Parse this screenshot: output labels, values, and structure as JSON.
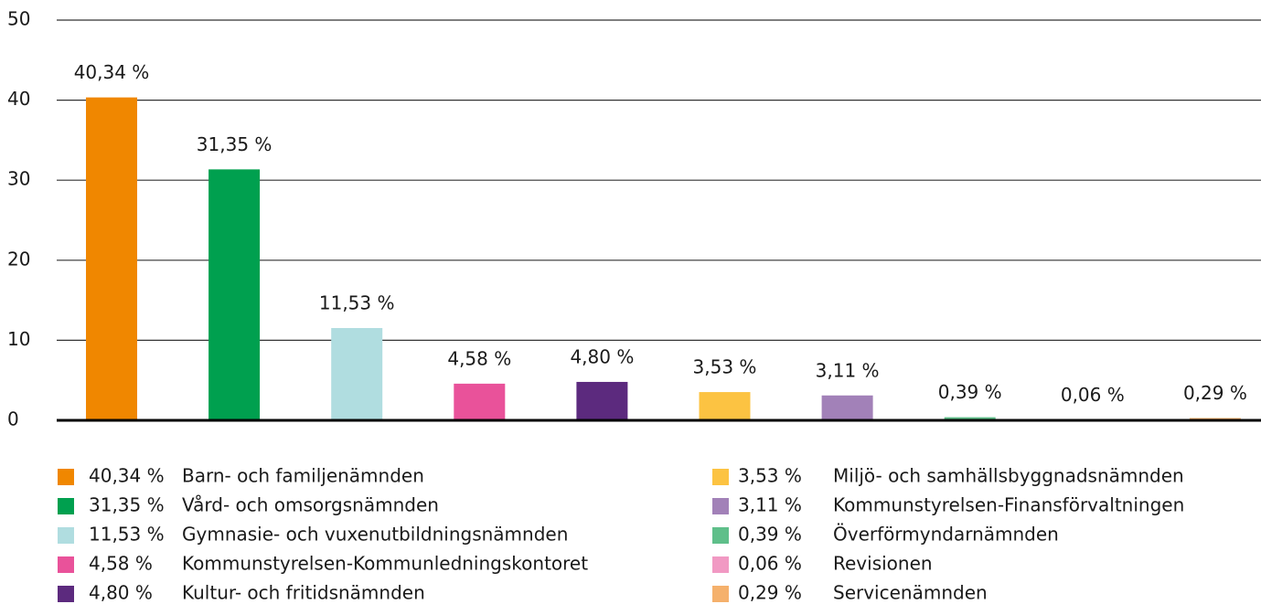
{
  "chart_data": {
    "type": "bar",
    "categories": [
      "Barn- och familjenämnden",
      "Vård- och omsorgsnämnden",
      "Gymnasie- och vuxenutbildningsnämnden",
      "Kommunstyrelsen-Kommunledningskontoret",
      "Kultur- och fritidsnämnden",
      "Miljö- och samhällsbyggnadsnämnden",
      "Kommunstyrelsen-Finansförvaltningen",
      "Överförmyndarnämnden",
      "Revisionen",
      "Servicenämnden"
    ],
    "values": [
      40.34,
      31.35,
      11.53,
      4.58,
      4.8,
      3.53,
      3.11,
      0.39,
      0.06,
      0.29
    ],
    "value_labels": [
      "40,34 %",
      "31,35 %",
      "11,53 %",
      "4,58 %",
      "4,80 %",
      "3,53 %",
      "3,11 %",
      "0,39 %",
      "0,06 %",
      "0,29 %"
    ],
    "colors": [
      "#f08700",
      "#00a04f",
      "#b0dde0",
      "#e9529a",
      "#5c2a7e",
      "#fcc342",
      "#a281b8",
      "#5fbf8a",
      "#f199c3",
      "#f5b16c"
    ],
    "ylim": [
      0,
      50
    ],
    "yticks": [
      0,
      10,
      20,
      30,
      40,
      50
    ],
    "grid": true
  }
}
